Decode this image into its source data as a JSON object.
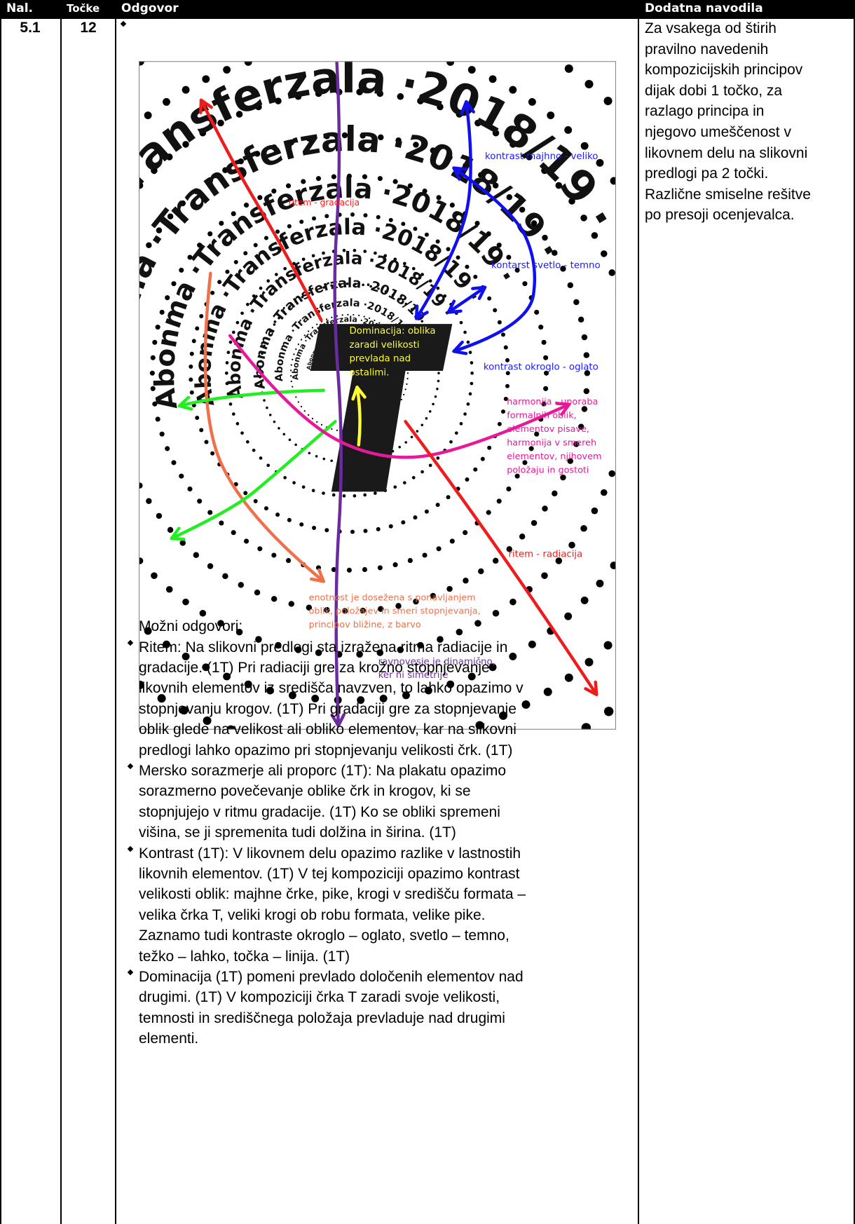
{
  "header": {
    "columns": [
      "Nal.",
      "Točke",
      "Odgovor",
      "Dodatna navodila"
    ]
  },
  "row": {
    "number": "5.1",
    "points": "12",
    "figure": {
      "poster": {
        "word1": "Abonma",
        "word2": "Transferzala",
        "year": "2018/19",
        "separator": "·"
      },
      "annotations": [
        {
          "color": "#1a1aff",
          "lines": [
            "kontrast majhno - veliko"
          ]
        },
        {
          "color": "#ff1a1a",
          "lines": [
            "ritem - gradacija"
          ]
        },
        {
          "color": "#1a1aff",
          "lines": [
            "kontarst svetlo - temno"
          ]
        },
        {
          "color": "#ffff33",
          "lines": [
            "Dominacija: oblika",
            "zaradi velikosti",
            "prevlada nad",
            "ostalimi."
          ]
        },
        {
          "color": "#1a1aff",
          "lines": [
            "kontrast okroglo - oglato"
          ]
        },
        {
          "color": "#e6199a",
          "lines": [
            "harmonija - uporaba",
            "formalnih oblik,",
            "elementov pisave,",
            "harmonija v smereh",
            "elementov, njihovem",
            "položaju in gostoti"
          ]
        },
        {
          "color": "#ff1a1a",
          "lines": [
            "ritem - radiacija"
          ]
        },
        {
          "color": "#f0704a",
          "lines": [
            "enotnost je dosežena s ponavljanjem",
            "oblik, položajev in smeri stopnjevanja,",
            "principov bližine, z barvo"
          ]
        },
        {
          "color": "#7030a0",
          "lines": [
            "ravnovesje je dinamično,",
            "ker ni simetrije"
          ]
        }
      ]
    },
    "answer_intro": "Možni odgovori:",
    "answer_items": [
      [
        "Ritem: Na slikovni predlogi sta izražena ritma radiacije in",
        "gradacije. (1T) Pri radiaciji gre za krožno stopnjevanje",
        "likovnih elementov iz središča navzven, to lahko opazimo v",
        "stopnjevanju krogov. (1T) Pri gradaciji gre za stopnjevanje",
        "oblik glede na velikost ali obliko elementov, kar na slikovni",
        "predlogi lahko opazimo pri stopnjevanju velikosti črk. (1T)"
      ],
      [
        "Mersko sorazmerje ali proporc (1T): Na plakatu opazimo",
        "sorazmerno povečevanje oblike črk in krogov, ki se",
        "stopnjujejo v ritmu gradacije. (1T) Ko se obliki spremeni",
        "višina, se ji spremenita tudi dolžina in širina. (1T)"
      ],
      [
        "Kontrast (1T): V likovnem delu opazimo razlike v lastnostih",
        "likovnih elementov. (1T)  V tej kompoziciji opazimo kontrast",
        "velikosti oblik: majhne črke, pike, krogi v središču formata –",
        "velika črka T, veliki krogi ob robu formata, velike pike.",
        "Zaznamo tudi kontraste okroglo – oglato, svetlo – temno,",
        "težko – lahko, točka – linija. (1T)"
      ],
      [
        "Dominacija (1T) pomeni prevlado določenih elementov nad",
        "drugimi. (1T) V kompoziciji črka T zaradi svoje velikosti,",
        "temnosti in središčnega položaja prevladuje nad drugimi",
        "elementi."
      ]
    ],
    "notes": [
      "Za vsakega od štirih",
      "pravilno navedenih",
      "kompozicijskih principov",
      "dijak dobi 1 točko, za",
      "razlago principa in",
      "njegovo umeščenost v",
      "likovnem delu na slikovni",
      "predlogi pa 2 točki.",
      "Različne smiselne rešitve",
      "po presoji ocenjevalca."
    ]
  }
}
